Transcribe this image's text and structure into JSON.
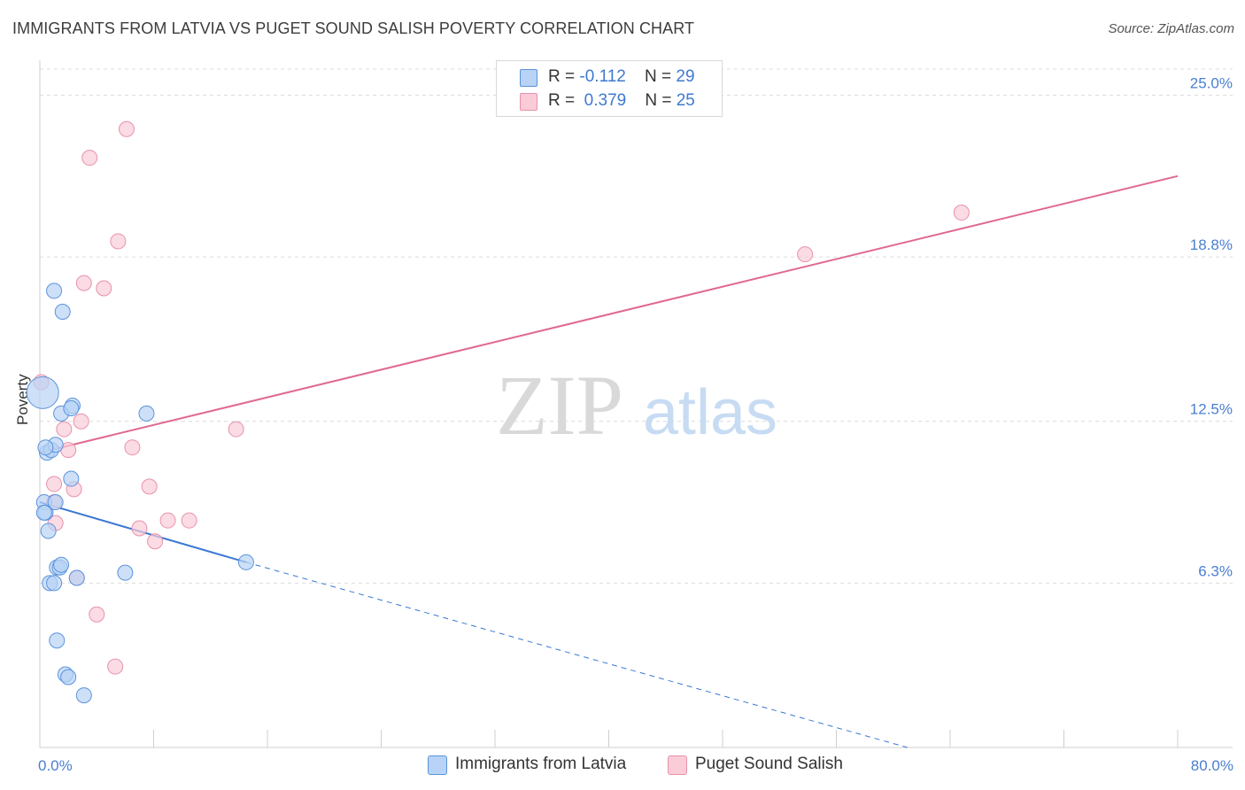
{
  "title": "IMMIGRANTS FROM LATVIA VS PUGET SOUND SALISH POVERTY CORRELATION CHART",
  "source": "Source: ZipAtlas.com",
  "watermark": {
    "zip": "ZIP",
    "atlas": "atlas"
  },
  "legend": {
    "r_label": "R =",
    "n_label": "N =",
    "series": [
      {
        "name": "Immigrants from Latvia",
        "r": "-0.112",
        "n": "29"
      },
      {
        "name": "Puget Sound Salish",
        "r": "0.379",
        "n": "25"
      }
    ]
  },
  "colors": {
    "blue_fill": "#b8d3f5",
    "blue_stroke": "#5b93dc",
    "blue_line": "#3a78d4",
    "pink_fill": "#f9ccd8",
    "pink_stroke": "#e892aa",
    "pink_line": "#e0698f",
    "tick_text": "#4a7fd0",
    "grid": "#dcdcdc"
  },
  "chart_data": {
    "type": "scatter",
    "title": "IMMIGRANTS FROM LATVIA VS PUGET SOUND SALISH POVERTY CORRELATION CHART",
    "xlabel": "",
    "ylabel": "Poverty",
    "xlim": [
      0,
      80
    ],
    "ylim": [
      0,
      26
    ],
    "x_tick_labels": [
      "0.0%",
      "80.0%"
    ],
    "y_ticks": [
      6.3,
      12.5,
      18.8,
      25.0
    ],
    "y_tick_labels": [
      "6.3%",
      "12.5%",
      "18.8%",
      "25.0%"
    ],
    "series": [
      {
        "name": "Immigrants from Latvia",
        "points": [
          [
            0.2,
            13.6
          ],
          [
            0.5,
            11.3
          ],
          [
            0.3,
            9.4
          ],
          [
            0.4,
            9.0
          ],
          [
            0.6,
            8.3
          ],
          [
            0.8,
            11.4
          ],
          [
            1.1,
            11.6
          ],
          [
            1.0,
            17.5
          ],
          [
            1.6,
            16.7
          ],
          [
            1.5,
            12.8
          ],
          [
            2.3,
            13.1
          ],
          [
            2.2,
            13.0
          ],
          [
            2.2,
            10.3
          ],
          [
            1.1,
            9.4
          ],
          [
            0.7,
            6.3
          ],
          [
            1.0,
            6.3
          ],
          [
            1.2,
            6.9
          ],
          [
            1.4,
            6.9
          ],
          [
            1.5,
            7.0
          ],
          [
            2.6,
            6.5
          ],
          [
            6.0,
            6.7
          ],
          [
            7.5,
            12.8
          ],
          [
            14.5,
            7.1
          ],
          [
            1.2,
            4.1
          ],
          [
            1.8,
            2.8
          ],
          [
            2.0,
            2.7
          ],
          [
            3.1,
            2.0
          ],
          [
            0.3,
            9.0
          ],
          [
            0.4,
            11.5
          ]
        ],
        "trend": {
          "x": [
            0,
            14.5
          ],
          "y": [
            9.4,
            7.1
          ],
          "dashed_to": [
            61,
            0
          ]
        }
      },
      {
        "name": "Puget Sound Salish",
        "points": [
          [
            0.1,
            14.0
          ],
          [
            1.0,
            10.1
          ],
          [
            1.0,
            9.4
          ],
          [
            1.1,
            8.6
          ],
          [
            1.7,
            12.2
          ],
          [
            2.0,
            11.4
          ],
          [
            2.4,
            9.9
          ],
          [
            2.6,
            6.5
          ],
          [
            2.9,
            12.5
          ],
          [
            3.1,
            17.8
          ],
          [
            3.5,
            22.6
          ],
          [
            4.5,
            17.6
          ],
          [
            5.5,
            19.4
          ],
          [
            6.1,
            23.7
          ],
          [
            4.0,
            5.1
          ],
          [
            5.3,
            3.1
          ],
          [
            6.5,
            11.5
          ],
          [
            7.0,
            8.4
          ],
          [
            7.7,
            10.0
          ],
          [
            8.1,
            7.9
          ],
          [
            9.0,
            8.7
          ],
          [
            10.5,
            8.7
          ],
          [
            13.8,
            12.2
          ],
          [
            53.8,
            18.9
          ],
          [
            64.8,
            20.5
          ]
        ],
        "trend": {
          "x": [
            0,
            80
          ],
          "y": [
            11.3,
            21.9
          ]
        }
      }
    ]
  }
}
